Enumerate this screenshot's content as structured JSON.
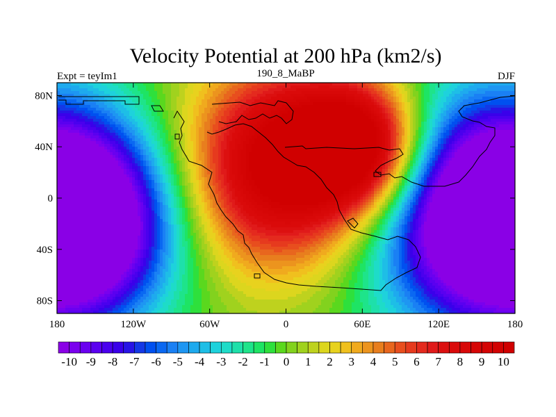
{
  "chart_data": {
    "type": "heatmap",
    "title": "Velocity Potential at 200 hPa (km2/s)",
    "left_label": "Expt = teyIm1",
    "center_label": "190_8_MaBP",
    "right_label": "DJF",
    "x_ticks": [
      {
        "value": -180,
        "label": "180"
      },
      {
        "value": -120,
        "label": "120W"
      },
      {
        "value": -60,
        "label": "60W"
      },
      {
        "value": 0,
        "label": "0"
      },
      {
        "value": 60,
        "label": "60E"
      },
      {
        "value": 120,
        "label": "120E"
      },
      {
        "value": 180,
        "label": "180"
      }
    ],
    "y_ticks": [
      {
        "value": 80,
        "label": "80N"
      },
      {
        "value": 40,
        "label": "40N"
      },
      {
        "value": 0,
        "label": "0"
      },
      {
        "value": -40,
        "label": "40S"
      },
      {
        "value": -80,
        "label": "80S"
      }
    ],
    "xlim": [
      -180,
      180
    ],
    "ylim": [
      -90,
      90
    ],
    "colorbar": {
      "min": -10.5,
      "max": 10.5,
      "step": 0.5,
      "labels": [
        "-10",
        "-9",
        "-8",
        "-7",
        "-6",
        "-5",
        "-4",
        "-3",
        "-2",
        "-1",
        "0",
        "1",
        "2",
        "3",
        "4",
        "5",
        "6",
        "7",
        "8",
        "9",
        "10"
      ],
      "label_values": [
        -10,
        -9,
        -8,
        -7,
        -6,
        -5,
        -4,
        -3,
        -2,
        -1,
        0,
        1,
        2,
        3,
        4,
        5,
        6,
        7,
        8,
        9,
        10
      ],
      "colors": [
        "#8a00e6",
        "#7a00ee",
        "#6a00f0",
        "#5a00f0",
        "#4a00ee",
        "#3a00ea",
        "#2814e6",
        "#1438e6",
        "#0050f0",
        "#0a68f2",
        "#1a80f4",
        "#1e96f2",
        "#1eaaee",
        "#1ebee6",
        "#1ed2dc",
        "#1edcc8",
        "#1ee0aa",
        "#1ee48a",
        "#1ee464",
        "#2ee03c",
        "#5ad81e",
        "#82d21e",
        "#a0d21e",
        "#bed21e",
        "#dcd61e",
        "#e8d21e",
        "#f0c01e",
        "#f0aa1e",
        "#ec941e",
        "#e87e1e",
        "#e8661e",
        "#e84e1e",
        "#e63a1e",
        "#e42a1e",
        "#e01a1a",
        "#dc1010",
        "#da0a0a",
        "#d80808",
        "#d60606",
        "#d40404",
        "#d20202",
        "#d00000"
      ]
    },
    "field_centers": [
      {
        "lon": 0,
        "lat": 25,
        "value": 10,
        "radius": 55
      },
      {
        "lon": 60,
        "lat": 40,
        "value": 9,
        "radius": 35
      },
      {
        "lon": -165,
        "lat": -20,
        "value": -10,
        "radius": 50
      },
      {
        "lon": 150,
        "lat": -10,
        "value": -10,
        "radius": 65
      }
    ]
  }
}
